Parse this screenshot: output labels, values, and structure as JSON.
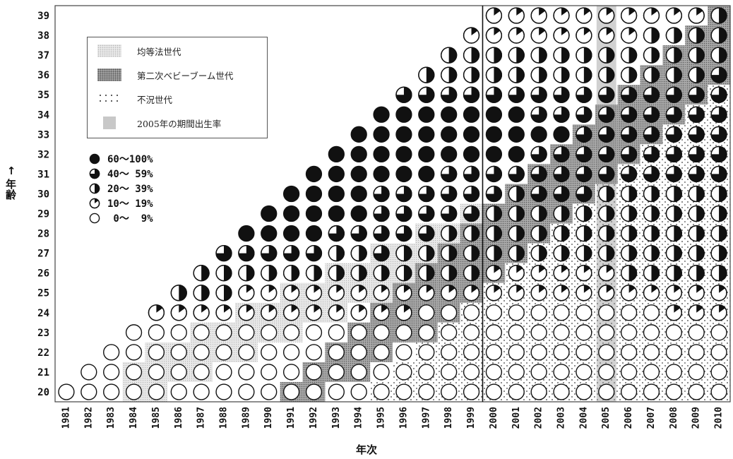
{
  "chart_data": {
    "type": "table",
    "title": "",
    "xlabel": "年次",
    "ylabel_arrow": "↑",
    "ylabel": "年齢",
    "years": [
      1981,
      1982,
      1983,
      1984,
      1985,
      1986,
      1987,
      1988,
      1989,
      1990,
      1991,
      1992,
      1993,
      1994,
      1995,
      1996,
      1997,
      1998,
      1999,
      2000,
      2001,
      2002,
      2003,
      2004,
      2005,
      2006,
      2007,
      2008,
      2009,
      2010
    ],
    "ages": [
      20,
      21,
      22,
      23,
      24,
      25,
      26,
      27,
      28,
      29,
      30,
      31,
      32,
      33,
      34,
      35,
      36,
      37,
      38,
      39
    ],
    "fill_levels": {
      "0": "0〜 9%",
      "1": "10〜 19%",
      "2": "20〜 39%",
      "3": "40〜 59%",
      "4": "60〜100%"
    },
    "rate_level_grid_rows_age_20_to_39_cols_1981_to_2010": [
      "000000000000000000000000000000",
      "-00000000000000000000000000000",
      "--0000000000000000000000000000",
      "---000000000000000000000000000",
      "----11111111111100000000000111",
      "-----2221111111111111111111111",
      "------222222222222211111122222",
      "-------33333223222222222222222",
      "--------4444333332222222222222",
      "---------444443333322222222222",
      "----------44443333332333222222",
      "-----------4444443333333333333",
      "------------444444444333333333",
      "-------------44444444443333333",
      "--------------4444444333333333",
      "---------------333333333333333",
      "----------------22222222222223",
      "-----------------2222222222222",
      "------------------111111112222",
      "-------------------11111111112"
    ],
    "shading_by_year_age_ranges": {
      "equal_opportunity_generation": [
        [
          1984,
          20,
          21
        ],
        [
          1985,
          20,
          22
        ],
        [
          1986,
          21,
          22
        ],
        [
          1987,
          21,
          23
        ],
        [
          1988,
          22,
          23
        ],
        [
          1989,
          22,
          24
        ],
        [
          1990,
          23,
          24
        ],
        [
          1991,
          23,
          25
        ],
        [
          1992,
          24,
          25
        ],
        [
          1993,
          24,
          26
        ],
        [
          1994,
          25,
          26
        ],
        [
          1995,
          25,
          27
        ],
        [
          1996,
          26,
          27
        ],
        [
          1997,
          26,
          28
        ],
        [
          1998,
          27,
          28
        ],
        [
          1999,
          27,
          29
        ],
        [
          2000,
          28,
          29
        ],
        [
          2001,
          28,
          30
        ],
        [
          2002,
          29,
          30
        ],
        [
          2003,
          29,
          31
        ],
        [
          2004,
          30,
          31
        ],
        [
          2005,
          30,
          32
        ],
        [
          2006,
          31,
          32
        ],
        [
          2007,
          31,
          33
        ],
        [
          2008,
          32,
          33
        ],
        [
          2009,
          32,
          34
        ],
        [
          2010,
          33,
          34
        ]
      ],
      "second_baby_boom_generation": [
        [
          1991,
          20,
          20
        ],
        [
          1992,
          20,
          21
        ],
        [
          1993,
          21,
          22
        ],
        [
          1994,
          21,
          23
        ],
        [
          1995,
          22,
          24
        ],
        [
          1996,
          23,
          25
        ],
        [
          1997,
          23,
          26
        ],
        [
          1998,
          24,
          27
        ],
        [
          1999,
          25,
          28
        ],
        [
          2000,
          26,
          29
        ],
        [
          2001,
          27,
          30
        ],
        [
          2002,
          28,
          31
        ],
        [
          2003,
          29,
          32
        ],
        [
          2004,
          30,
          33
        ],
        [
          2005,
          31,
          34
        ],
        [
          2006,
          32,
          35
        ],
        [
          2007,
          33,
          36
        ],
        [
          2008,
          34,
          37
        ],
        [
          2009,
          35,
          38
        ],
        [
          2010,
          36,
          39
        ]
      ],
      "recession_generation": [
        [
          1995,
          20,
          20
        ],
        [
          1996,
          20,
          21
        ],
        [
          1997,
          20,
          22
        ],
        [
          1998,
          20,
          23
        ],
        [
          1999,
          20,
          24
        ],
        [
          2000,
          20,
          25
        ],
        [
          2001,
          20,
          26
        ],
        [
          2002,
          20,
          27
        ],
        [
          2003,
          20,
          28
        ],
        [
          2004,
          20,
          29
        ],
        [
          2005,
          20,
          30
        ],
        [
          2006,
          20,
          31
        ],
        [
          2007,
          20,
          32
        ],
        [
          2008,
          20,
          33
        ],
        [
          2009,
          20,
          34
        ],
        [
          2010,
          20,
          35
        ]
      ]
    },
    "highlight_year": 2005,
    "divider_after_year": 1999,
    "legend": [
      {
        "key": "equal",
        "label": "均等法世代"
      },
      {
        "key": "boom",
        "label": "第二次ベビーブーム世代"
      },
      {
        "key": "slump",
        "label": "不況世代"
      },
      {
        "key": "y2005",
        "label": "2005年の期間出生率"
      }
    ],
    "pie_legend": [
      {
        "level": 4,
        "label": "60〜100%"
      },
      {
        "level": 3,
        "label": "40〜 59%"
      },
      {
        "level": 2,
        "label": "20〜 39%"
      },
      {
        "level": 1,
        "label": "10〜 19%"
      },
      {
        "level": 0,
        "label": " 0〜  9%"
      }
    ]
  }
}
